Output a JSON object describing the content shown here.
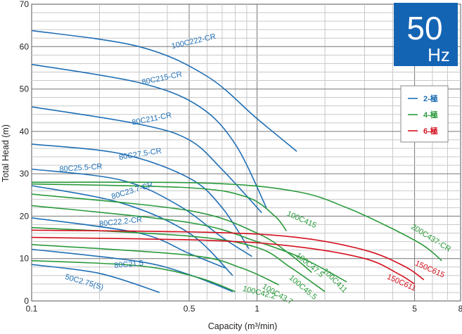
{
  "badge": {
    "freq": "50",
    "unit": "Hz",
    "color": "#1464b4"
  },
  "legend": [
    {
      "label": "2-極",
      "color": "#1f6fb5"
    },
    {
      "label": "4-極",
      "color": "#2a9a3c"
    },
    {
      "label": "6-極",
      "color": "#d4101e"
    }
  ],
  "chart_data": {
    "type": "line",
    "xlabel": "Capacity (m³/min)",
    "ylabel": "Total Head (m)",
    "x_scale": "log",
    "xlim": [
      0.1,
      8
    ],
    "ylim": [
      0,
      70
    ],
    "x_ticks": [
      "0.1",
      "0.5",
      "1",
      "5",
      "8"
    ],
    "y_ticks": [
      "0",
      "10",
      "20",
      "30",
      "40",
      "50",
      "60",
      "70"
    ],
    "grid": true,
    "legend_position": "top-right",
    "series": [
      {
        "name": "100C222-CR",
        "pole": "2",
        "points": [
          [
            0.1,
            63.8
          ],
          [
            0.3,
            60
          ],
          [
            0.6,
            53
          ],
          [
            1.0,
            43
          ],
          [
            1.5,
            35.3
          ]
        ]
      },
      {
        "name": "80C215-CR",
        "pole": "2",
        "points": [
          [
            0.1,
            55.8
          ],
          [
            0.3,
            51.5
          ],
          [
            0.55,
            46
          ],
          [
            0.8,
            37
          ],
          [
            1.1,
            22
          ]
        ]
      },
      {
        "name": "80C211-CR",
        "pole": "2",
        "points": [
          [
            0.1,
            45.8
          ],
          [
            0.3,
            41.7
          ],
          [
            0.5,
            38
          ],
          [
            0.7,
            31
          ],
          [
            1.05,
            20.8
          ]
        ]
      },
      {
        "name": "80C27.5-CR",
        "pole": "2",
        "points": [
          [
            0.1,
            37
          ],
          [
            0.25,
            34.7
          ],
          [
            0.5,
            29
          ],
          [
            0.7,
            22
          ],
          [
            0.92,
            12.3
          ]
        ]
      },
      {
        "name": "80C25.5-CR",
        "pole": "2",
        "points": [
          [
            0.1,
            31.1
          ],
          [
            0.25,
            28.5
          ],
          [
            0.45,
            22.5
          ],
          [
            0.7,
            15
          ],
          [
            0.95,
            10.5
          ]
        ]
      },
      {
        "name": "80C23.7-CR",
        "pole": "2",
        "points": [
          [
            0.1,
            27.2
          ],
          [
            0.25,
            23.1
          ],
          [
            0.5,
            16
          ],
          [
            0.78,
            6
          ]
        ]
      },
      {
        "name": "80C22.2-CR",
        "pole": "2",
        "points": [
          [
            0.1,
            19.6
          ],
          [
            0.3,
            16
          ],
          [
            0.5,
            11.2
          ],
          [
            0.72,
            7.8
          ]
        ]
      },
      {
        "name": "80C21.5",
        "pole": "2",
        "points": [
          [
            0.1,
            12.2
          ],
          [
            0.3,
            9.3
          ],
          [
            0.5,
            6.2
          ],
          [
            0.78,
            2.2
          ]
        ]
      },
      {
        "name": "50C2.75(S)",
        "pole": "2",
        "points": [
          [
            0.1,
            8.6
          ],
          [
            0.2,
            6.5
          ],
          [
            0.37,
            2
          ]
        ]
      },
      {
        "name": "100C415",
        "pole": "4",
        "points": [
          [
            0.1,
            27.6
          ],
          [
            0.5,
            26.7
          ],
          [
            0.9,
            24.5
          ],
          [
            1.2,
            20
          ],
          [
            1.35,
            16.5
          ]
        ]
      },
      {
        "name": "200C437-CR",
        "pole": "4",
        "points": [
          [
            0.1,
            28
          ],
          [
            0.6,
            27.8
          ],
          [
            1.5,
            25.8
          ],
          [
            2.5,
            22
          ],
          [
            4,
            17
          ],
          [
            5.5,
            13
          ],
          [
            6.6,
            9.5
          ]
        ]
      },
      {
        "name": "100C47.5",
        "pole": "4",
        "points": [
          [
            0.1,
            25.2
          ],
          [
            0.5,
            21.3
          ],
          [
            1.0,
            16
          ],
          [
            1.4,
            11
          ],
          [
            1.75,
            6.7
          ]
        ]
      },
      {
        "name": "100C411",
        "pole": "4",
        "points": [
          [
            0.1,
            22.5
          ],
          [
            0.5,
            18.5
          ],
          [
            1.0,
            14
          ],
          [
            1.6,
            10
          ],
          [
            2.5,
            4.5
          ]
        ]
      },
      {
        "name": "100C45.5",
        "pole": "4",
        "points": [
          [
            0.1,
            17.3
          ],
          [
            0.5,
            15.3
          ],
          [
            1.0,
            12.6
          ],
          [
            1.4,
            8
          ],
          [
            2.0,
            2.2
          ]
        ]
      },
      {
        "name": "100C43.7",
        "pole": "4",
        "points": [
          [
            0.1,
            13.3
          ],
          [
            0.5,
            10.8
          ],
          [
            0.85,
            7.8
          ],
          [
            1.25,
            3.8
          ]
        ]
      },
      {
        "name": "100C42.2",
        "pole": "4",
        "points": [
          [
            0.1,
            9.5
          ],
          [
            0.3,
            8.3
          ],
          [
            0.55,
            5.5
          ],
          [
            0.8,
            2.2
          ]
        ]
      },
      {
        "name": "150C615",
        "pole": "6",
        "points": [
          [
            0.1,
            16.7
          ],
          [
            0.6,
            16.2
          ],
          [
            1.5,
            15
          ],
          [
            3,
            12
          ],
          [
            4.5,
            8.2
          ],
          [
            5.5,
            5
          ]
        ]
      },
      {
        "name": "150C611",
        "pole": "6",
        "points": [
          [
            0.1,
            15
          ],
          [
            0.6,
            14.3
          ],
          [
            1.5,
            12.8
          ],
          [
            3,
            10
          ],
          [
            4.2,
            6.5
          ],
          [
            5,
            4
          ]
        ]
      }
    ],
    "curve_labels": [
      {
        "series": "100C222-CR",
        "text": "100C222-CR",
        "x": 0.42,
        "y": 59.5,
        "angle": -13
      },
      {
        "series": "80C215-CR",
        "text": "80C215-CR",
        "x": 0.31,
        "y": 51.0,
        "angle": -12
      },
      {
        "series": "80C211-CR",
        "text": "80C211-CR",
        "x": 0.28,
        "y": 41.5,
        "angle": -11
      },
      {
        "series": "80C27.5-CR",
        "text": "80C27.5-CR",
        "x": 0.245,
        "y": 33.3,
        "angle": -9
      },
      {
        "series": "80C25.5-CR",
        "text": "80C25.5-CR",
        "x": 0.133,
        "y": 30.5,
        "angle": -4
      },
      {
        "series": "80C23.7-CR",
        "text": "80C23.7-CR",
        "x": 0.228,
        "y": 24.0,
        "angle": -17
      },
      {
        "series": "80C22.2-CR",
        "text": "80C22.2-CR",
        "x": 0.2,
        "y": 17.6,
        "angle": -6
      },
      {
        "series": "80C21.5",
        "text": "80C21.5",
        "x": 0.233,
        "y": 7.8,
        "angle": -5
      },
      {
        "series": "50C2.75(S)",
        "text": "50C2.75(S)",
        "x": 0.14,
        "y": 5.2,
        "angle": 16
      },
      {
        "series": "100C415",
        "text": "100C415",
        "x": 1.35,
        "y": 20.2,
        "angle": 24
      },
      {
        "series": "200C437-CR",
        "text": "200C437-CR",
        "x": 4.8,
        "y": 17.2,
        "angle": 32
      },
      {
        "series": "100C47.5",
        "text": "100C47.5",
        "x": 1.48,
        "y": 10.6,
        "angle": 40
      },
      {
        "series": "100C411",
        "text": "100C411",
        "x": 1.95,
        "y": 7.0,
        "angle": 45
      },
      {
        "series": "100C45.5",
        "text": "100C45.5",
        "x": 1.38,
        "y": 5.3,
        "angle": 40
      },
      {
        "series": "100C43.7",
        "text": "100C43.7",
        "x": 1.05,
        "y": 3.1,
        "angle": 30
      },
      {
        "series": "100C42.2",
        "text": "100C42.2",
        "x": 0.86,
        "y": 2.4,
        "angle": 14
      },
      {
        "series": "150C615",
        "text": "150C615",
        "x": 5.0,
        "y": 8.5,
        "angle": 24
      },
      {
        "series": "150C611",
        "text": "150C611",
        "x": 3.75,
        "y": 5.3,
        "angle": 24
      }
    ]
  }
}
